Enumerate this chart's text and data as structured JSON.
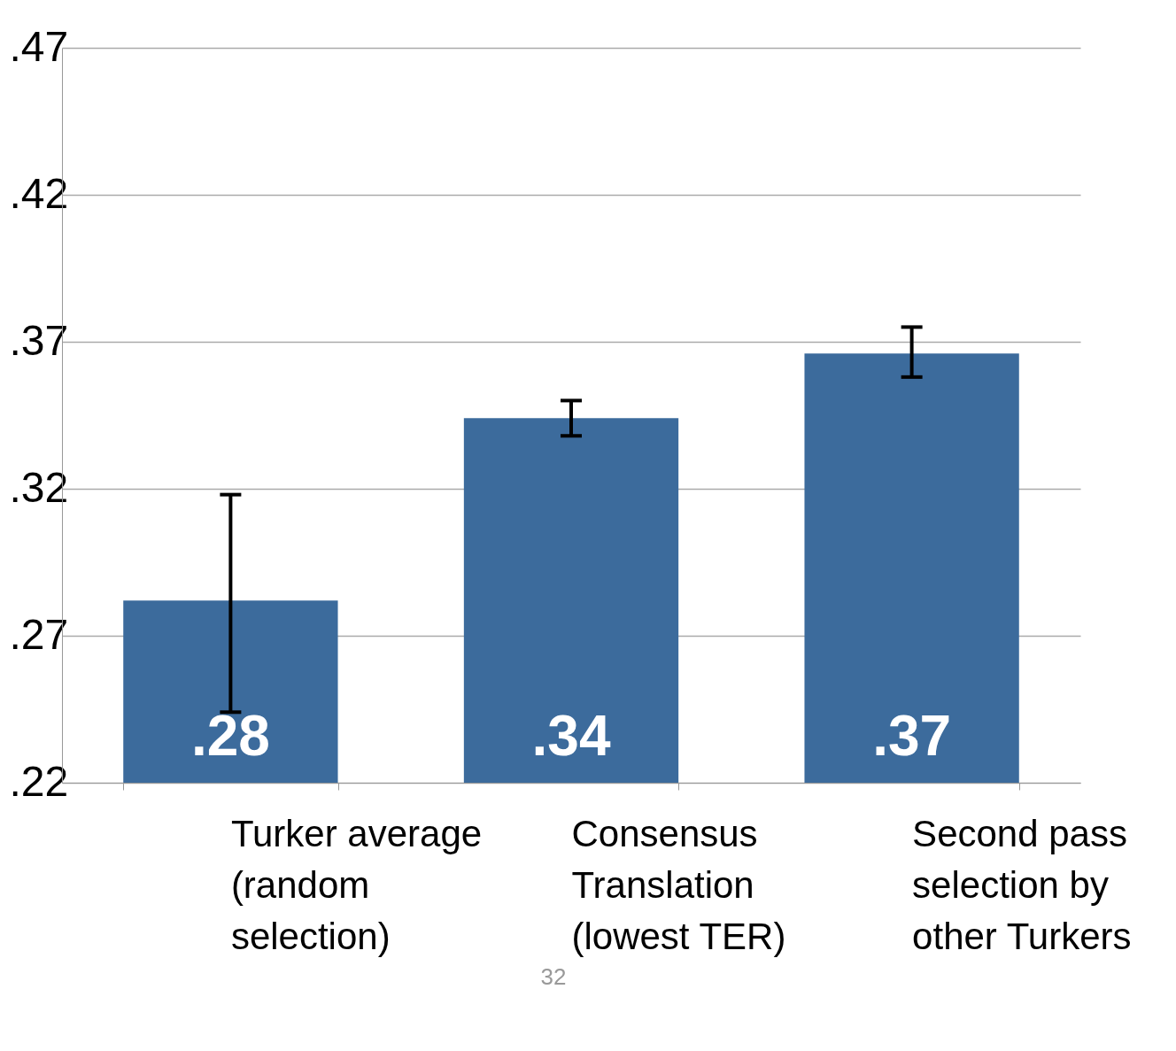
{
  "chart_data": {
    "type": "bar",
    "categories": [
      "Turker average (random selection)",
      "Consensus Translation (lowest TER)",
      "Second pass selection by other Turkers"
    ],
    "values": [
      0.282,
      0.344,
      0.366
    ],
    "value_labels": [
      ".28",
      ".34",
      ".37"
    ],
    "errors": [
      [
        0.244,
        0.318
      ],
      [
        0.338,
        0.35
      ],
      [
        0.358,
        0.375
      ]
    ],
    "color": "#3c6b9c",
    "ylim": [
      0.22,
      0.47
    ],
    "yticks": [
      {
        "value": 0.22,
        "label": ".22"
      },
      {
        "value": 0.27,
        "label": ".27"
      },
      {
        "value": 0.32,
        "label": ".32"
      },
      {
        "value": 0.37,
        "label": ".37"
      },
      {
        "value": 0.42,
        "label": ".42"
      },
      {
        "value": 0.47,
        "label": ".47"
      }
    ],
    "grid": "y",
    "annotations": [
      "32"
    ]
  }
}
